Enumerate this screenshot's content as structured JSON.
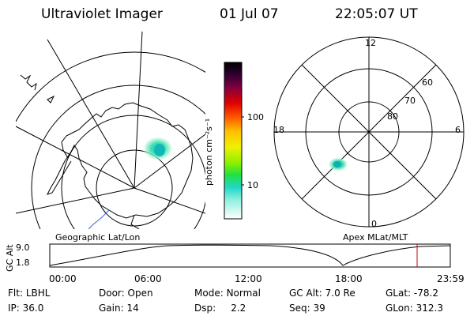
{
  "header": {
    "title": "Ultraviolet Imager",
    "date": "01 Jul 07",
    "time": "22:05:07 UT"
  },
  "colorbar": {
    "label": "photon cm⁻²s⁻¹",
    "ticks": [
      "100",
      "10"
    ]
  },
  "polar_plot": {
    "mlt_labels": [
      "12",
      "18",
      "6",
      "0"
    ],
    "lat_labels": [
      "60",
      "70",
      "80"
    ]
  },
  "timeline": {
    "left_label": "Geographic Lat/Lon",
    "right_label": "Apex MLat/MLT",
    "y_axis_label": "GC Alt",
    "y_ticks": [
      "9.0",
      "1.8"
    ],
    "x_ticks": [
      "00:00",
      "06:00",
      "12:00",
      "18:00",
      "23:59"
    ]
  },
  "info": {
    "row1": [
      {
        "label": "Flt:",
        "value": "LBHL"
      },
      {
        "label": "Door:",
        "value": "Open"
      },
      {
        "label": "Mode:",
        "value": "Normal"
      },
      {
        "label": "GC Alt:",
        "value": "7.0 Re"
      },
      {
        "label": "GLat:",
        "value": "-78.2"
      }
    ],
    "row2": [
      {
        "label": "IP:",
        "value": "36.0"
      },
      {
        "label": "Gain:",
        "value": "14"
      },
      {
        "label": "Dsp:",
        "value": "2.2"
      },
      {
        "label": "Seq:",
        "value": "39"
      },
      {
        "label": "GLon:",
        "value": "312.3"
      }
    ]
  },
  "colors": {
    "timeline_marker": "#d00000",
    "coastline": "#000000",
    "aurora_cyan": "#20d8c8",
    "aurora_green": "#60e060"
  }
}
